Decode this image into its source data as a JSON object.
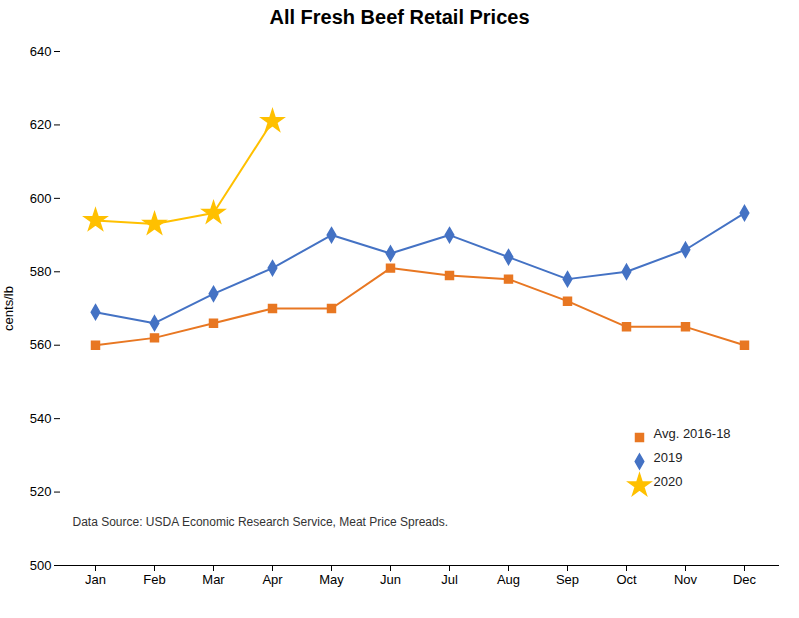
{
  "chart_data": {
    "type": "line",
    "title": "All Fresh Beef Retail Prices",
    "ylabel": "cents/lb",
    "categories": [
      "Jan",
      "Feb",
      "Mar",
      "Apr",
      "May",
      "Jun",
      "Jul",
      "Aug",
      "Sep",
      "Oct",
      "Nov",
      "Dec"
    ],
    "series": [
      {
        "name": "Avg. 2016-18",
        "color": "#E87722",
        "marker": "square",
        "values": [
          560,
          562,
          566,
          570,
          570,
          581,
          579,
          578,
          572,
          565,
          565,
          560
        ]
      },
      {
        "name": "2019",
        "color": "#4472C4",
        "marker": "diamond",
        "values": [
          569,
          566,
          574,
          581,
          590,
          585,
          590,
          584,
          578,
          580,
          586,
          596
        ]
      },
      {
        "name": "2020",
        "color": "#FFC000",
        "marker": "star",
        "values": [
          594,
          593,
          596,
          621,
          null,
          null,
          null,
          null,
          null,
          null,
          null,
          null
        ]
      }
    ],
    "ylim": [
      500,
      640
    ],
    "yticks": [
      500,
      520,
      540,
      560,
      580,
      600,
      620,
      640
    ],
    "grid": false,
    "legend": "lower right",
    "annotation": "Data Source: USDA Economic Research Service, Meat Price Spreads."
  }
}
